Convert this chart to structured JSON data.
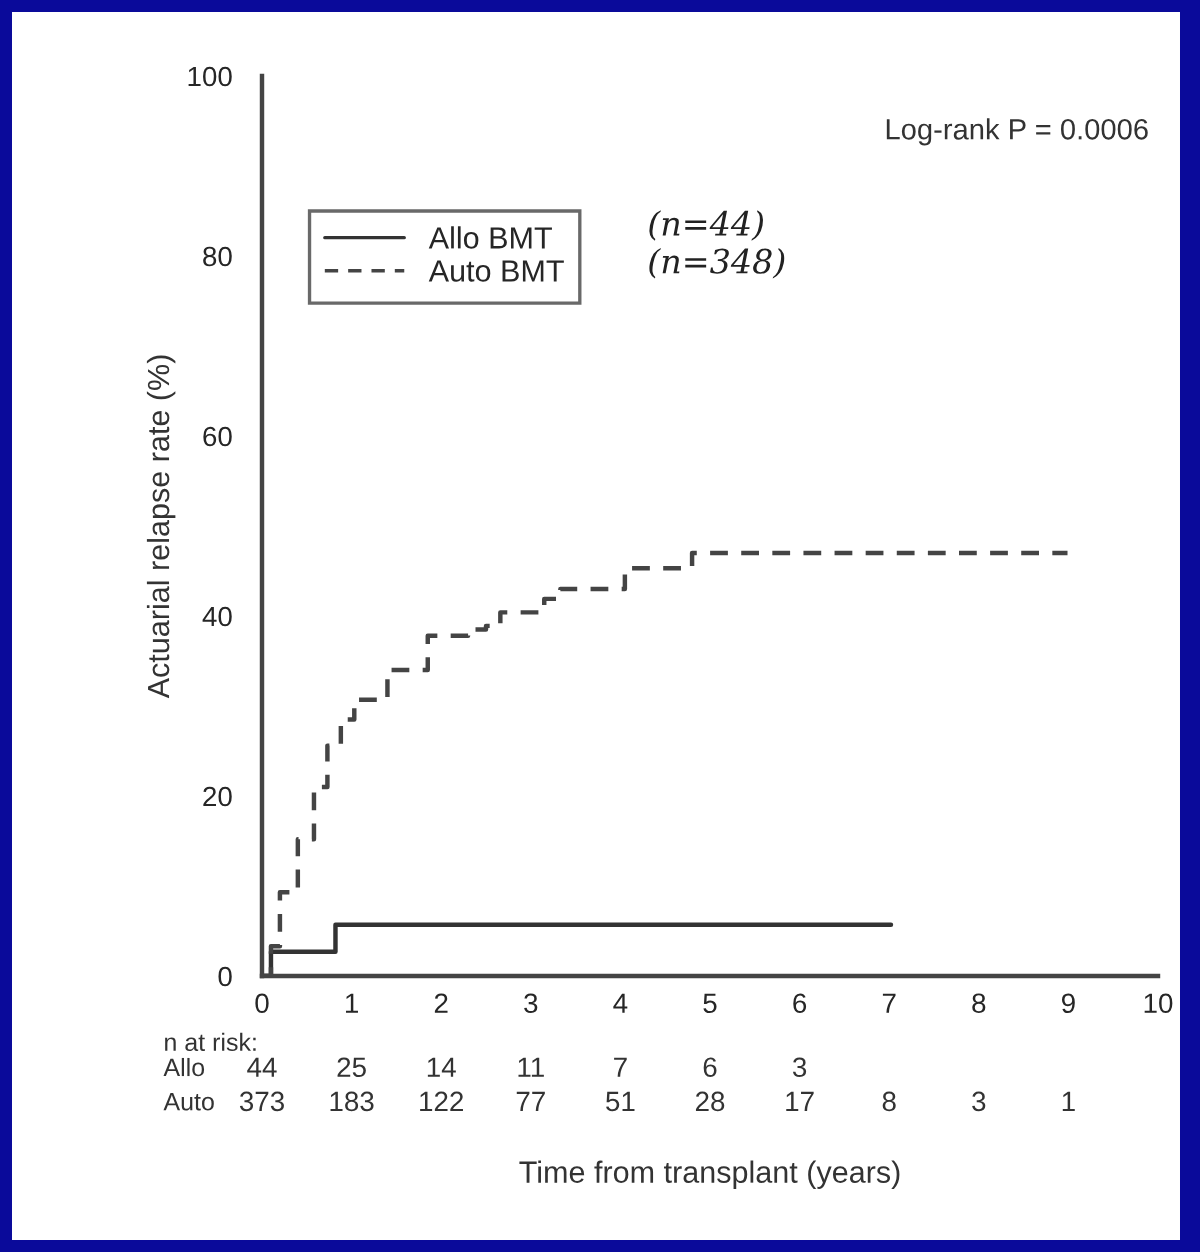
{
  "chart_data": {
    "type": "step",
    "xlabel": "Time from transplant (years)",
    "ylabel": "Actuarial relapse rate (%)",
    "xlim": [
      0,
      10
    ],
    "xticks": [
      0,
      1,
      2,
      3,
      4,
      5,
      6,
      7,
      8,
      9,
      10
    ],
    "ylim": [
      0,
      100
    ],
    "yticks": [
      0,
      20,
      40,
      60,
      80,
      100
    ],
    "legend": "top left",
    "grid": false,
    "series": [
      {
        "name": "Allo BMT",
        "color": "#333333",
        "line_style": "solid",
        "x": [
          0,
          0.1,
          0.82,
          7.02
        ],
        "values": [
          0,
          2.7,
          5.7,
          5.7
        ]
      },
      {
        "name": "Auto BMT",
        "color": "#444444",
        "line_style": "dashed",
        "x": [
          0,
          0.1,
          0.2,
          0.4,
          0.58,
          0.73,
          0.88,
          1.03,
          1.4,
          1.85,
          2.3,
          2.5,
          2.66,
          3.15,
          3.33,
          4.05,
          4.8,
          8.99
        ],
        "values": [
          0,
          3.3,
          9.3,
          15.2,
          21,
          25.6,
          28.5,
          30.7,
          34,
          37.8,
          38.5,
          38.9,
          40.4,
          41.9,
          43,
          45.3,
          47,
          47
        ]
      }
    ],
    "annotations": [
      "Log-rank P = 0.0006",
      "(n=44)",
      "(n=348)",
      "n at risk:",
      "Allo",
      "44 25 14 11 7 6 3",
      "Auto",
      "373 183 122 77 51 28 17 8 3 1"
    ]
  }
}
